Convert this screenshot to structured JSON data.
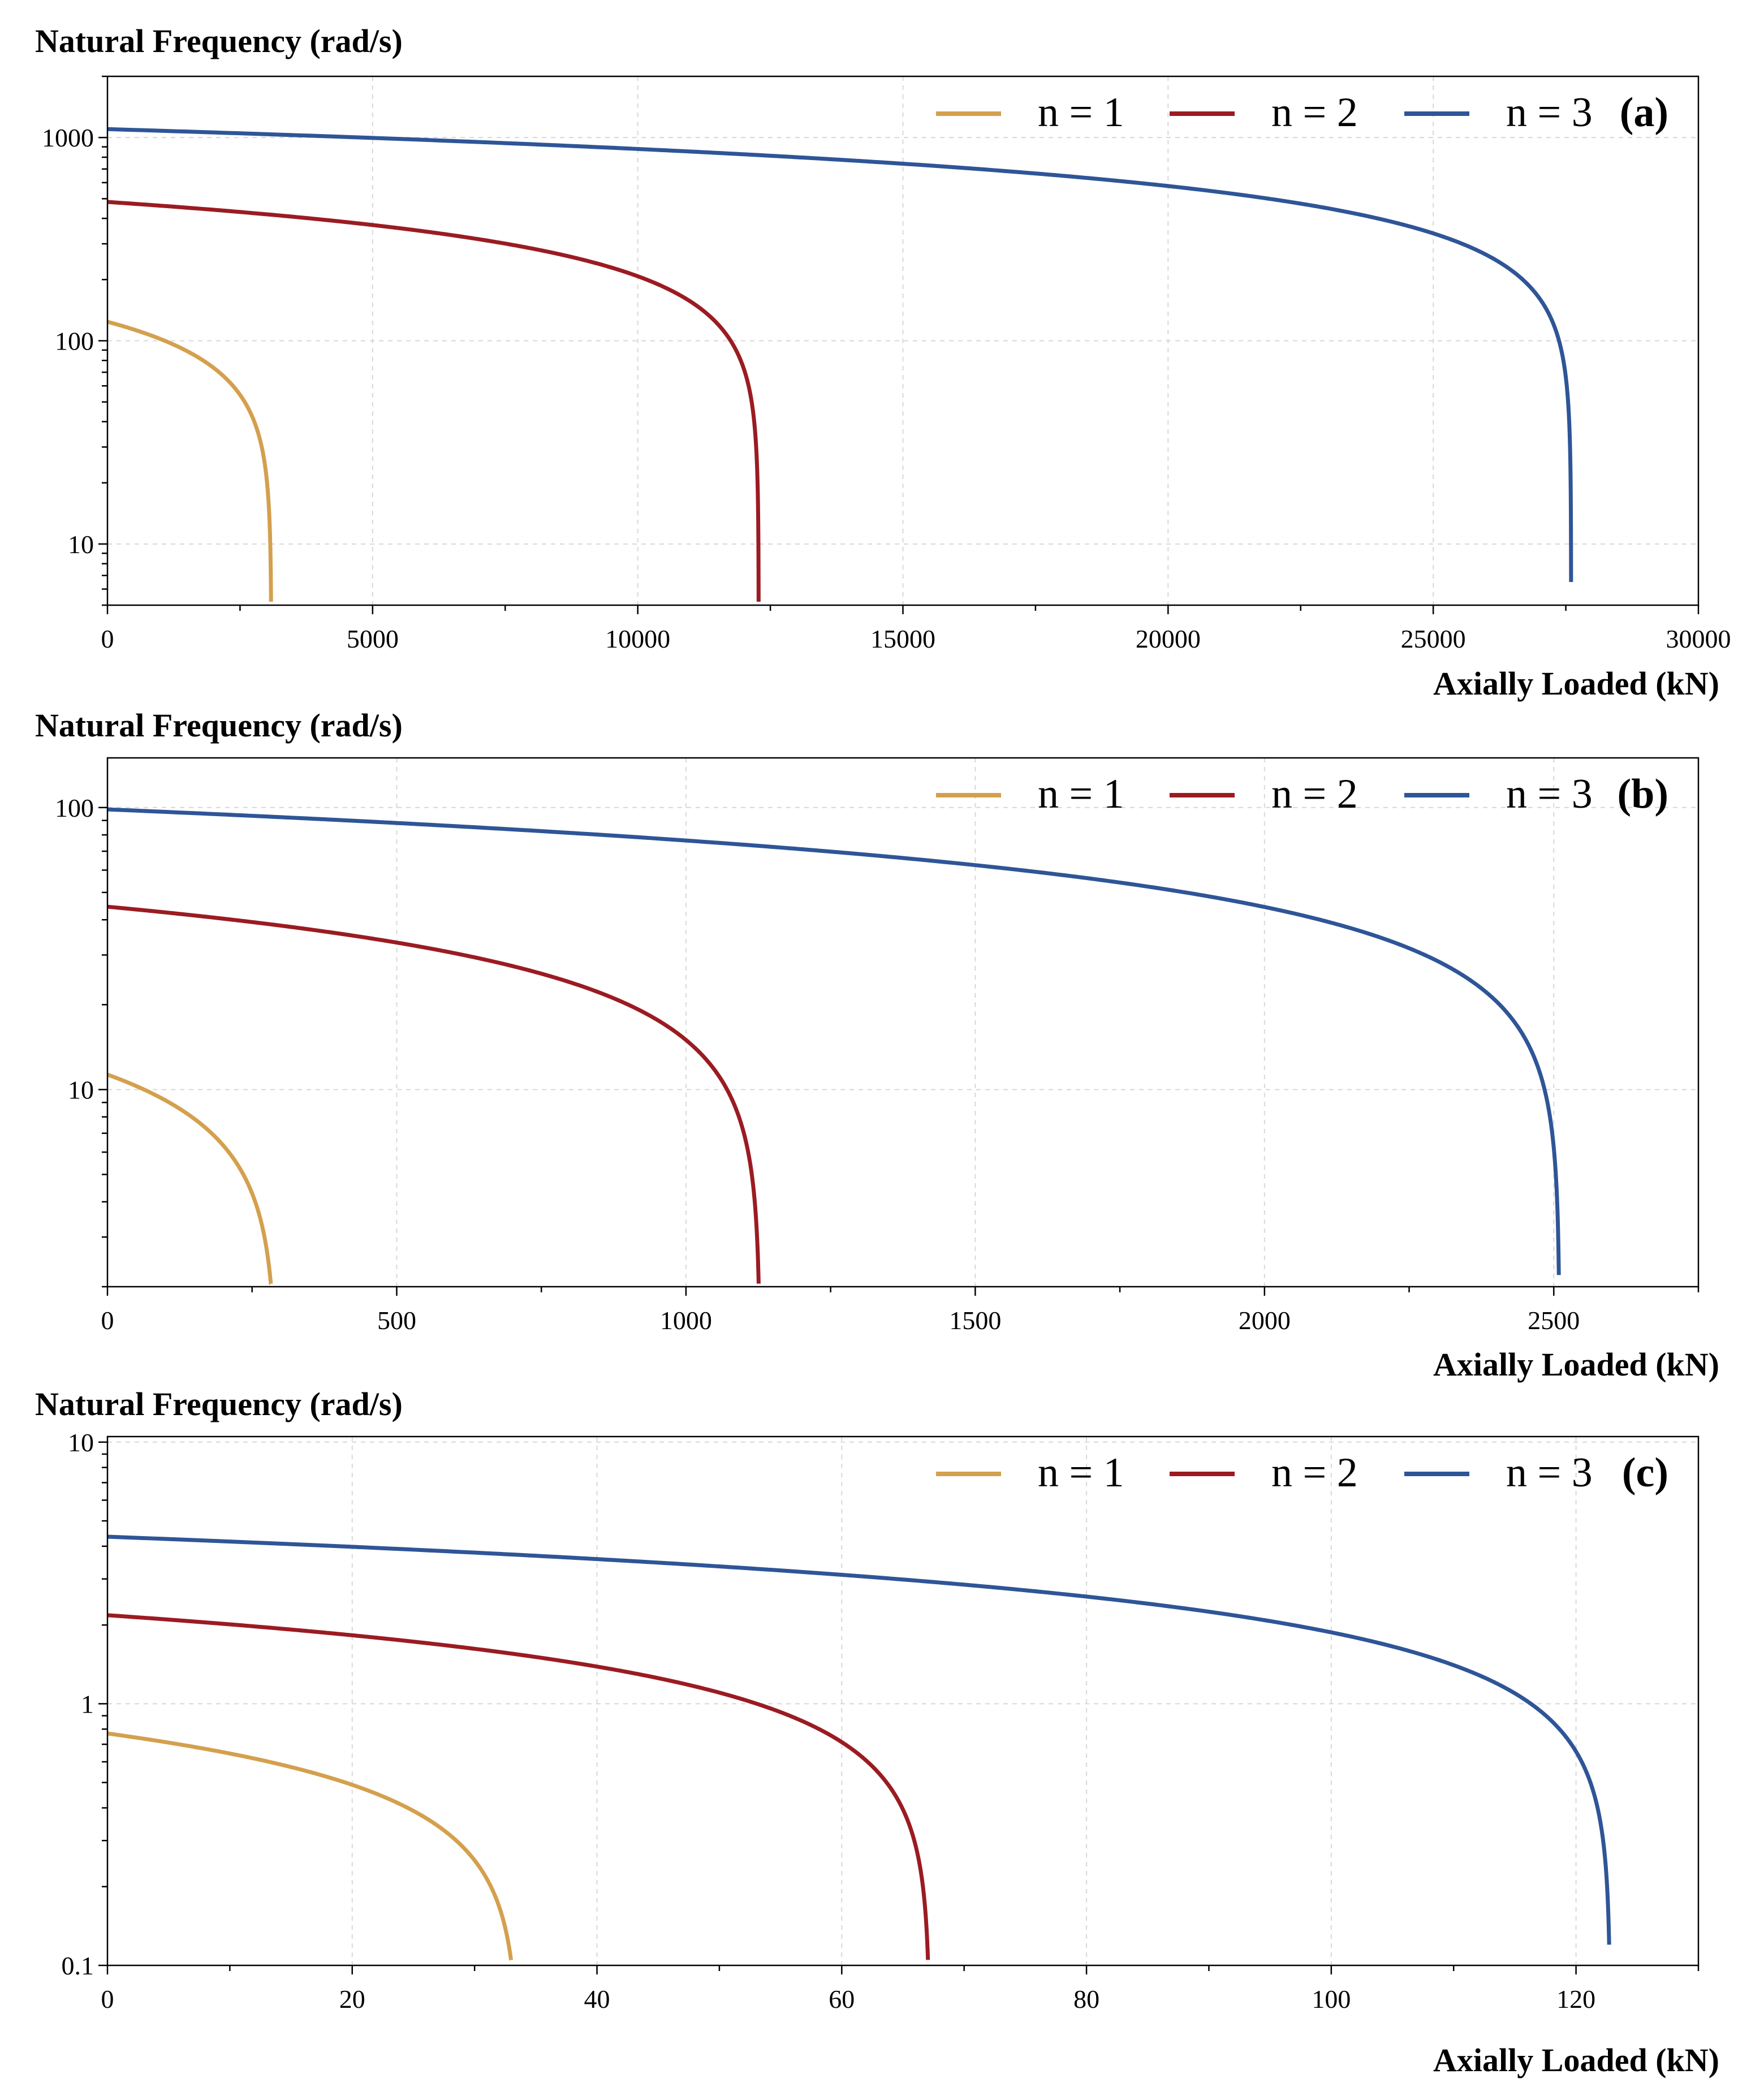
{
  "chart_data": [
    {
      "type": "line",
      "panel_label": "(a)",
      "ylabel": "Natural Frequency (rad/s)",
      "xlabel": "Axially Loaded (kN)",
      "yscale": "log",
      "xlim": [
        0,
        30000
      ],
      "ylim": [
        5,
        2000
      ],
      "xticks": [
        "0",
        "5000",
        "10000",
        "15000",
        "20000",
        "25000",
        "30000"
      ],
      "yticks": [
        "10",
        "100",
        "1000"
      ],
      "grid": true,
      "legend": "top-right",
      "series": [
        {
          "name": "n = 1",
          "color": "#d4a04e",
          "w0": 124,
          "pcr": 3090,
          "ymin": 5.2
        },
        {
          "name": "n = 2",
          "color": "#9b1b22",
          "w0": 482,
          "pcr": 12280,
          "ymin": 5.2
        },
        {
          "name": "n = 3",
          "color": "#2e5597",
          "w0": 1100,
          "pcr": 27600,
          "ymin": 6.5
        }
      ]
    },
    {
      "type": "line",
      "panel_label": "(b)",
      "ylabel": "Natural Frequency (rad/s)",
      "xlabel": "Axially Loaded (kN)",
      "yscale": "log",
      "xlim": [
        0,
        2750
      ],
      "ylim": [
        2,
        150
      ],
      "xticks": [
        "0",
        "500",
        "1000",
        "1500",
        "2000",
        "2500"
      ],
      "yticks": [
        "10",
        "100"
      ],
      "grid": true,
      "legend": "top-right",
      "series": [
        {
          "name": "n = 1",
          "color": "#d4a04e",
          "w0": 11.3,
          "pcr": 292,
          "ymin": 2.05
        },
        {
          "name": "n = 2",
          "color": "#9b1b22",
          "w0": 44.5,
          "pcr": 1128,
          "ymin": 2.05
        },
        {
          "name": "n = 3",
          "color": "#2e5597",
          "w0": 98.5,
          "pcr": 2510,
          "ymin": 2.2
        }
      ]
    },
    {
      "type": "line",
      "panel_label": "(c)",
      "ylabel": "Natural Frequency (rad/s)",
      "xlabel": "Axially Loaded (kN)",
      "yscale": "log",
      "xlim": [
        0,
        130
      ],
      "ylim": [
        0.1,
        10.5
      ],
      "xticks": [
        "0",
        "20",
        "40",
        "60",
        "80",
        "100",
        "120"
      ],
      "yticks": [
        "0.1",
        "1",
        "10"
      ],
      "grid": true,
      "legend": "top-right",
      "series": [
        {
          "name": "n = 1",
          "color": "#d4a04e",
          "w0": 0.77,
          "pcr": 33.6,
          "ymin": 0.105
        },
        {
          "name": "n = 2",
          "color": "#9b1b22",
          "w0": 2.18,
          "pcr": 67.2,
          "ymin": 0.105
        },
        {
          "name": "n = 3",
          "color": "#2e5597",
          "w0": 4.35,
          "pcr": 122.8,
          "ymin": 0.12
        }
      ]
    }
  ]
}
